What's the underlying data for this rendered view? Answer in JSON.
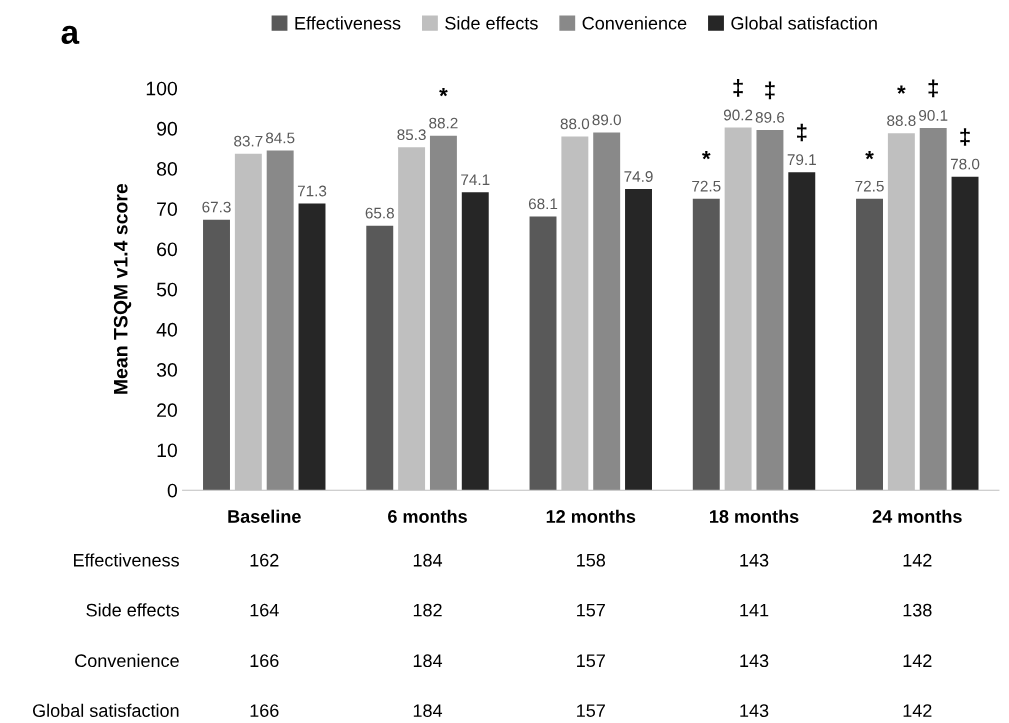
{
  "chart_data": {
    "type": "bar",
    "title": "a",
    "ylabel": "Mean TSQM v1.4 score",
    "categories": [
      "Baseline",
      "6 months",
      "12 months",
      "18 months",
      "24 months"
    ],
    "series": [
      {
        "name": "Effectiveness",
        "color": "#595959",
        "values": [
          67.3,
          65.8,
          68.1,
          72.5,
          72.5
        ],
        "value_labels": [
          "67.3",
          "65.8",
          "68.1",
          "72.5",
          "72.5"
        ]
      },
      {
        "name": "Side effects",
        "color": "#bfbfbf",
        "values": [
          83.7,
          85.3,
          88.0,
          90.2,
          88.8
        ],
        "value_labels": [
          "83.7",
          "85.3",
          "88.0",
          "90.2",
          "88.8"
        ]
      },
      {
        "name": "Convenience",
        "color": "#898989",
        "values": [
          84.5,
          88.2,
          89.0,
          89.6,
          90.1
        ],
        "value_labels": [
          "84.5",
          "88.2",
          "89.0",
          "89.6",
          "90.1"
        ]
      },
      {
        "name": "Global satisfaction",
        "color": "#262626",
        "values": [
          71.3,
          74.1,
          74.9,
          79.1,
          78.0
        ],
        "value_labels": [
          "71.3",
          "74.1",
          "74.9",
          "79.1",
          "78.0"
        ]
      }
    ],
    "ylim": [
      0,
      100
    ],
    "yticks": [
      0,
      10,
      20,
      30,
      40,
      50,
      60,
      70,
      80,
      90,
      100
    ],
    "grid": false,
    "legend": "top",
    "annotations": [
      {
        "text": "*",
        "x": "6 months",
        "y": 88.2
      },
      {
        "text": "*",
        "x": "18 months",
        "y": 72.5
      },
      {
        "text": "‡",
        "x": "18 months",
        "y": 90.2
      },
      {
        "text": "‡",
        "x": "18 months",
        "y": 89.6
      },
      {
        "text": "‡",
        "x": "18 months",
        "y": 79.1
      },
      {
        "text": "*",
        "x": "24 months",
        "y": 72.5
      },
      {
        "text": "*",
        "x": "24 months",
        "y": 88.8
      },
      {
        "text": "‡",
        "x": "24 months",
        "y": 90.1
      },
      {
        "text": "‡",
        "x": "24 months",
        "y": 78.0
      },
      "Effectiveness",
      "162",
      "184",
      "158",
      "143",
      "142",
      "Side effects",
      "164",
      "182",
      "157",
      "141",
      "138",
      "Convenience",
      "166",
      "184",
      "157",
      "143",
      "142",
      "Global satisfaction",
      "166",
      "184",
      "157",
      "143",
      "142"
    ]
  }
}
